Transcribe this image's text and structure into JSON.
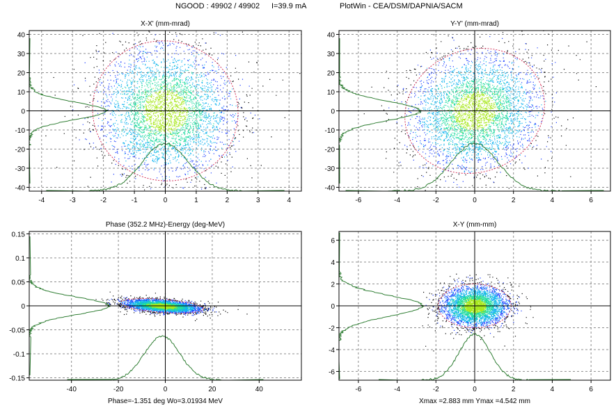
{
  "header": {
    "ngood": "NGOOD : 49902 / 49902",
    "current": "I=39.9 mA",
    "program": "PlotWin - CEA/DSM/DAPNIA/SACM"
  },
  "colors": {
    "frame": "#000000",
    "grid": "#8c8c8c",
    "profile": "#2e7d32",
    "halo": "#000000",
    "core": [
      "#1a3cff",
      "#11b3f0",
      "#1fdba0",
      "#a8e81c"
    ],
    "ellipse": "#d0204a"
  },
  "chart_data": [
    {
      "type": "scatter",
      "title": "X-X' (mm-mrad)",
      "xlim": [
        -4.4,
        4.4
      ],
      "ylim": [
        -42,
        42
      ],
      "xticks": [
        -4,
        -3,
        -2,
        -1,
        0,
        1,
        2,
        3,
        4
      ],
      "yticks": [
        -40,
        -30,
        -20,
        -10,
        0,
        10,
        20,
        30,
        40
      ],
      "xtick_labels": [
        "-4",
        "-3",
        "-2",
        "-1",
        "0",
        "1",
        "2",
        "3",
        "4"
      ],
      "ytick_labels": [
        "-40",
        "-30",
        "-20",
        "-10",
        "0",
        "10",
        "20",
        "30",
        "40"
      ],
      "grid": true,
      "distribution": {
        "center": [
          0,
          0
        ],
        "sigma_major": 0.95,
        "sigma_minor": 0.3,
        "slope": -5.6
      },
      "x_profile": {
        "center": 0,
        "sigma": 0.75,
        "peak": -17,
        "base": -42,
        "extent": [
          -2.5,
          2.5
        ]
      },
      "y_profile": {
        "center": 0,
        "sigma": 4.5,
        "peak": -1.9,
        "base": -4.4,
        "extent": [
          -18,
          18
        ]
      },
      "footer": ""
    },
    {
      "type": "scatter",
      "title": "Y-Y' (mm-mrad)",
      "xlim": [
        -7,
        7
      ],
      "ylim": [
        -42,
        42
      ],
      "xticks": [
        -6,
        -4,
        -2,
        0,
        2,
        4,
        6
      ],
      "yticks": [
        -40,
        -30,
        -20,
        -10,
        0,
        10,
        20,
        30,
        40
      ],
      "xtick_labels": [
        "-6",
        "-4",
        "-2",
        "0",
        "2",
        "4",
        "6"
      ],
      "ytick_labels": [
        "-40",
        "-30",
        "-20",
        "-10",
        "0",
        "10",
        "20",
        "30",
        "40"
      ],
      "grid": true,
      "distribution": {
        "center": [
          0,
          0
        ],
        "sigma_major": 1.45,
        "sigma_minor": 0.42,
        "slope": 4.0
      },
      "x_profile": {
        "center": 0,
        "sigma": 1.2,
        "peak": -17,
        "base": -42,
        "extent": [
          -4.5,
          4.5
        ]
      },
      "y_profile": {
        "center": 0,
        "sigma": 5.0,
        "peak": -2.8,
        "base": -7,
        "extent": [
          -18,
          18
        ]
      },
      "footer": ""
    },
    {
      "type": "scatter",
      "title": "Phase (352.2 MHz)-Energy (deg-MeV)",
      "xlim": [
        -58,
        58
      ],
      "ylim": [
        -0.155,
        0.155
      ],
      "xticks": [
        -40,
        -20,
        0,
        20,
        40
      ],
      "yticks": [
        -0.15,
        -0.1,
        -0.05,
        0,
        0.05,
        0.1,
        0.15
      ],
      "xtick_labels": [
        "-40",
        "-20",
        "0",
        "20",
        "40"
      ],
      "ytick_labels": [
        "-0.15",
        "-0.1",
        "-0.05",
        "0",
        "0.05",
        "0.1",
        "0.15"
      ],
      "grid": true,
      "distribution": {
        "center": [
          -1.351,
          0
        ],
        "sigma_major": 7.5,
        "sigma_minor": 0.011,
        "slope": -0.00038
      },
      "x_profile": {
        "center": -1.351,
        "sigma": 7.5,
        "peak": -0.063,
        "base": -0.155,
        "extent": [
          -24,
          24
        ]
      },
      "y_profile": {
        "center": 0,
        "sigma": 0.018,
        "peak": -24,
        "base": -58,
        "extent": [
          -0.065,
          0.065
        ]
      },
      "footer": "Phase=-1.351 deg  Wo=3.01934 MeV"
    },
    {
      "type": "scatter",
      "title": "X-Y (mm-mm)",
      "xlim": [
        -7,
        7
      ],
      "ylim": [
        -6.8,
        6.8
      ],
      "xticks": [
        -6,
        -4,
        -2,
        0,
        2,
        4,
        6
      ],
      "yticks": [
        -6,
        -4,
        -2,
        0,
        2,
        4,
        6
      ],
      "xtick_labels": [
        "-6",
        "-4",
        "-2",
        "0",
        "2",
        "4",
        "6"
      ],
      "ytick_labels": [
        "-6",
        "-4",
        "-2",
        "0",
        "2",
        "4",
        "6"
      ],
      "grid": true,
      "distribution": {
        "center": [
          0,
          0
        ],
        "sigma_major": 0.8,
        "sigma_minor": 0.85,
        "slope": 0
      },
      "x_profile": {
        "center": 0,
        "sigma": 0.8,
        "peak": -2.6,
        "base": -6.8,
        "extent": [
          -2.8,
          2.8
        ]
      },
      "y_profile": {
        "center": 0,
        "sigma": 0.95,
        "peak": -2.7,
        "base": -7,
        "extent": [
          -3.2,
          3.2
        ]
      },
      "footer": "Xmax =2.883 mm  Ymax =4.542 mm"
    }
  ]
}
